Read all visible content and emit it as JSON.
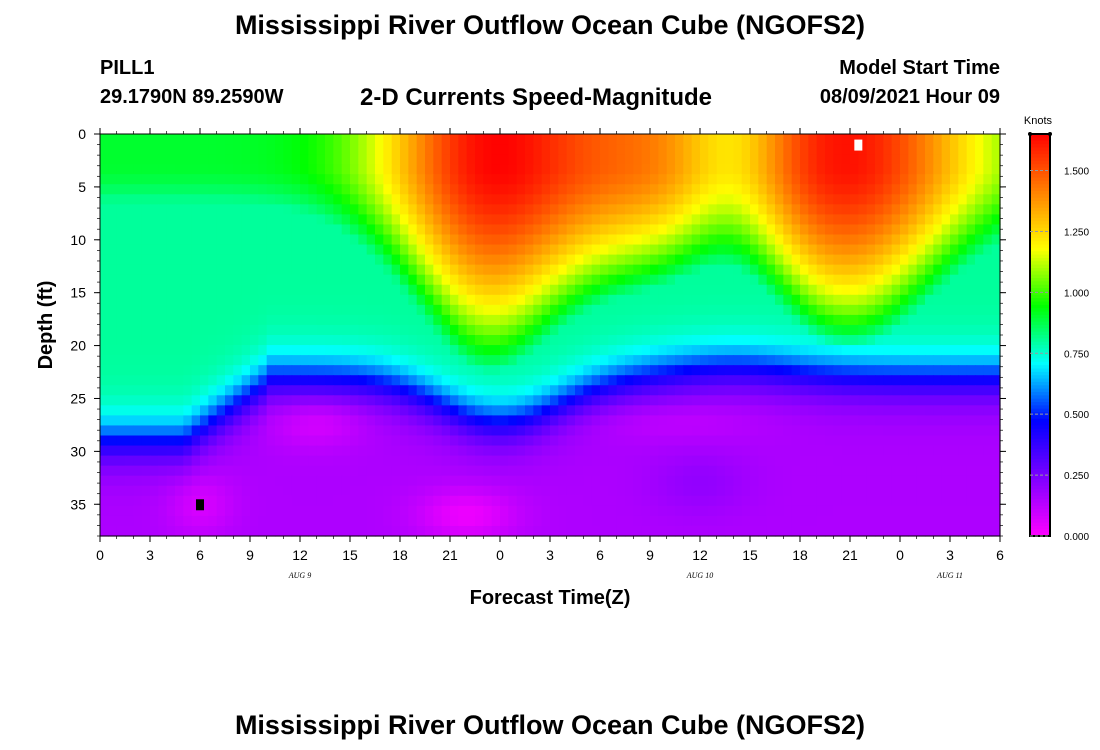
{
  "header": {
    "title": "Mississippi River Outflow Ocean Cube (NGOFS2)",
    "station": "PILL1",
    "coordinates": "29.1790N  89.2590W",
    "subtitle": "2-D Currents Speed-Magnitude",
    "model_start_label": "Model Start Time",
    "model_start_value": "08/09/2021 Hour 09"
  },
  "footer": {
    "title": "Mississippi River Outflow Ocean Cube (NGOFS2)"
  },
  "chart_data": {
    "type": "heatmap",
    "xlabel": "Forecast Time(Z)",
    "ylabel": "Depth (ft)",
    "x_tick_labels": [
      "0",
      "3",
      "6",
      "9",
      "12",
      "15",
      "18",
      "21",
      "0",
      "3",
      "6",
      "9",
      "12",
      "15",
      "18",
      "21",
      "0",
      "3",
      "6"
    ],
    "date_labels": [
      {
        "label": "AUG 9",
        "tick_index": 4
      },
      {
        "label": "AUG 10",
        "tick_index": 12
      },
      {
        "label": "AUG 11",
        "tick_index": 17
      }
    ],
    "x_range_hours": [
      0,
      54
    ],
    "y_ticks": [
      0,
      5,
      10,
      15,
      20,
      25,
      30,
      35
    ],
    "y_range_ft": [
      0,
      38
    ],
    "y_inverted": true,
    "colorbar": {
      "title": "Knots",
      "ticks": [
        "0.000",
        "0.250",
        "0.500",
        "0.750",
        "1.000",
        "1.250",
        "1.500"
      ],
      "range": [
        0,
        1.65
      ],
      "colors": [
        "#ff00ff",
        "#7f00ff",
        "#0000ff",
        "#00ffff",
        "#00ff00",
        "#ffff00",
        "#ff8000",
        "#ff0000"
      ]
    },
    "markers": [
      {
        "name": "max-marker",
        "hour": 45.5,
        "depth_ft": 1,
        "color": "#ffffff"
      },
      {
        "name": "min-marker",
        "hour": 6,
        "depth_ft": 35,
        "color": "#000000"
      }
    ]
  }
}
